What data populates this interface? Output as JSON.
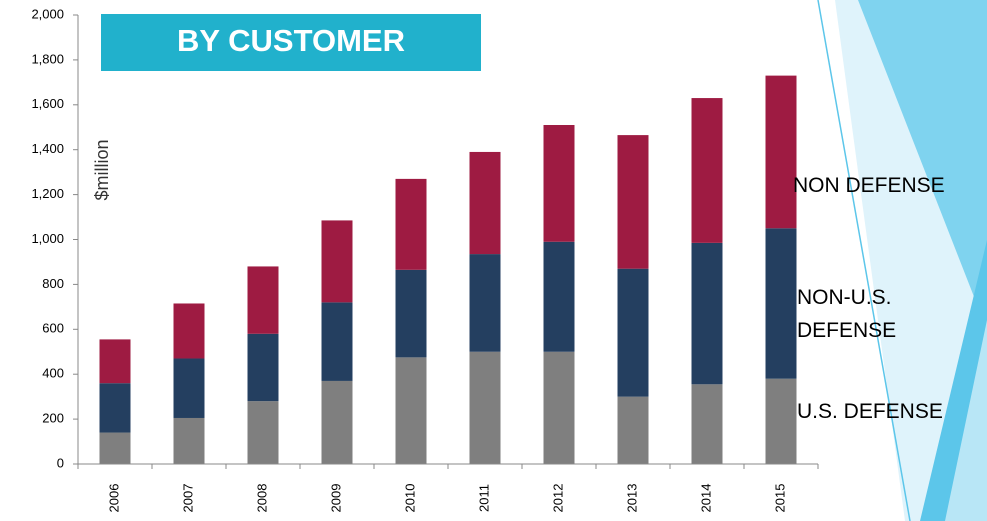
{
  "chart_data": {
    "type": "stacked-bar",
    "title": "BY CUSTOMER",
    "y_label": "$million",
    "categories": [
      "2006",
      "2007",
      "2008",
      "2009",
      "2010",
      "2011",
      "2012",
      "2013",
      "2014",
      "2015"
    ],
    "series": [
      {
        "name": "U.S. DEFENSE",
        "color": "#7f7f7f",
        "values": [
          140,
          205,
          280,
          370,
          475,
          500,
          500,
          300,
          355,
          380
        ]
      },
      {
        "name": "NON-U.S. DEFENSE",
        "color": "#243f60",
        "values": [
          220,
          265,
          300,
          350,
          390,
          435,
          490,
          570,
          630,
          670
        ]
      },
      {
        "name": "NON DEFENSE",
        "color": "#9e1b42",
        "values": [
          195,
          245,
          300,
          365,
          405,
          455,
          520,
          595,
          645,
          680
        ]
      }
    ],
    "ylim": [
      0,
      2000
    ],
    "yticks": [
      0,
      {
        "value": 200,
        "label": "200"
      },
      400,
      600,
      800,
      {
        "value": 1000,
        "label": "1,000"
      },
      {
        "value": 1200,
        "label": "1,200"
      },
      {
        "value": 1400,
        "label": "1,400"
      },
      {
        "value": 1600,
        "label": "1,600"
      },
      {
        "value": 1800,
        "label": "1,800"
      },
      {
        "value": 2000,
        "label": "2,000"
      }
    ]
  }
}
